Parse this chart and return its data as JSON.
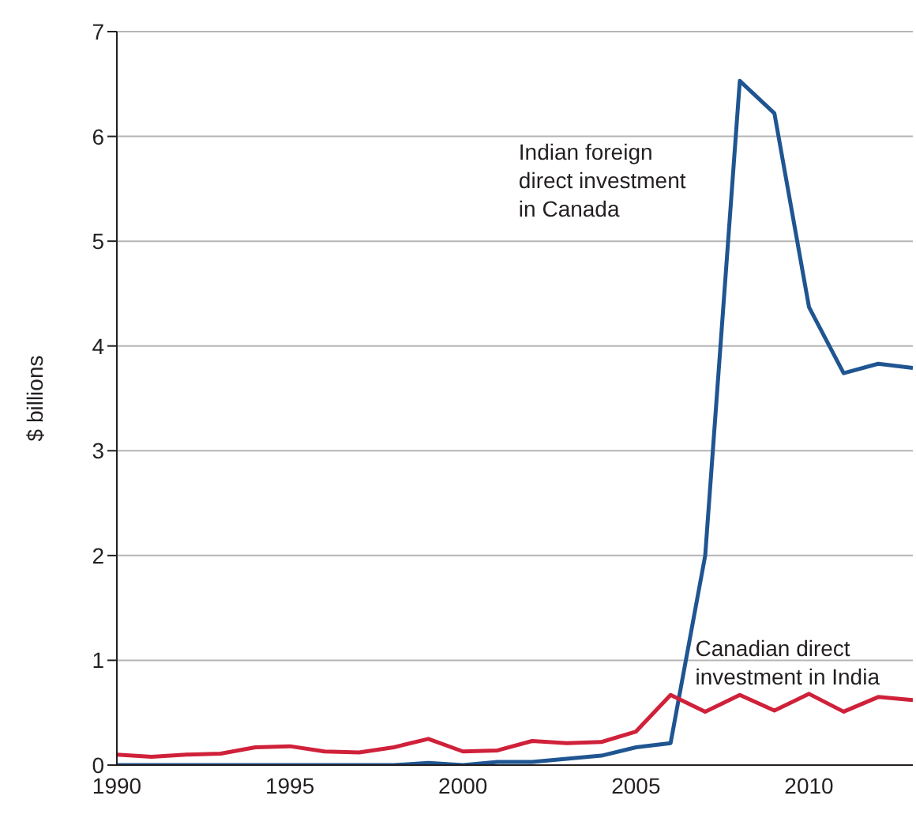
{
  "chart_data": {
    "type": "line",
    "ylabel": "$ billions",
    "x": [
      1990,
      1991,
      1992,
      1993,
      1994,
      1995,
      1996,
      1997,
      1998,
      1999,
      2000,
      2001,
      2002,
      2003,
      2004,
      2005,
      2006,
      2007,
      2008,
      2009,
      2010,
      2011,
      2012,
      2013
    ],
    "series": [
      {
        "name": "Indian foreign direct investment in Canada",
        "color": "#1f5591",
        "values": [
          0,
          0,
          0,
          0,
          0,
          0,
          0,
          0,
          0,
          0.02,
          0,
          0.03,
          0.03,
          0.06,
          0.09,
          0.17,
          0.21,
          2.0,
          6.53,
          6.22,
          4.37,
          3.74,
          3.83,
          3.79
        ]
      },
      {
        "name": "Canadian direct investment in India",
        "color": "#d0213a",
        "values": [
          0.1,
          0.08,
          0.1,
          0.11,
          0.17,
          0.18,
          0.13,
          0.12,
          0.17,
          0.25,
          0.13,
          0.14,
          0.23,
          0.21,
          0.22,
          0.32,
          0.67,
          0.51,
          0.67,
          0.52,
          0.68,
          0.51,
          0.65,
          0.62
        ]
      }
    ],
    "xlim": [
      1990,
      2013
    ],
    "xticks": [
      1990,
      1995,
      2000,
      2005,
      2010
    ],
    "ylim": [
      0,
      7
    ],
    "yticks": [
      0,
      1,
      2,
      3,
      4,
      5,
      6,
      7
    ],
    "grid": "y",
    "marker": "none",
    "line_style": "solid"
  }
}
